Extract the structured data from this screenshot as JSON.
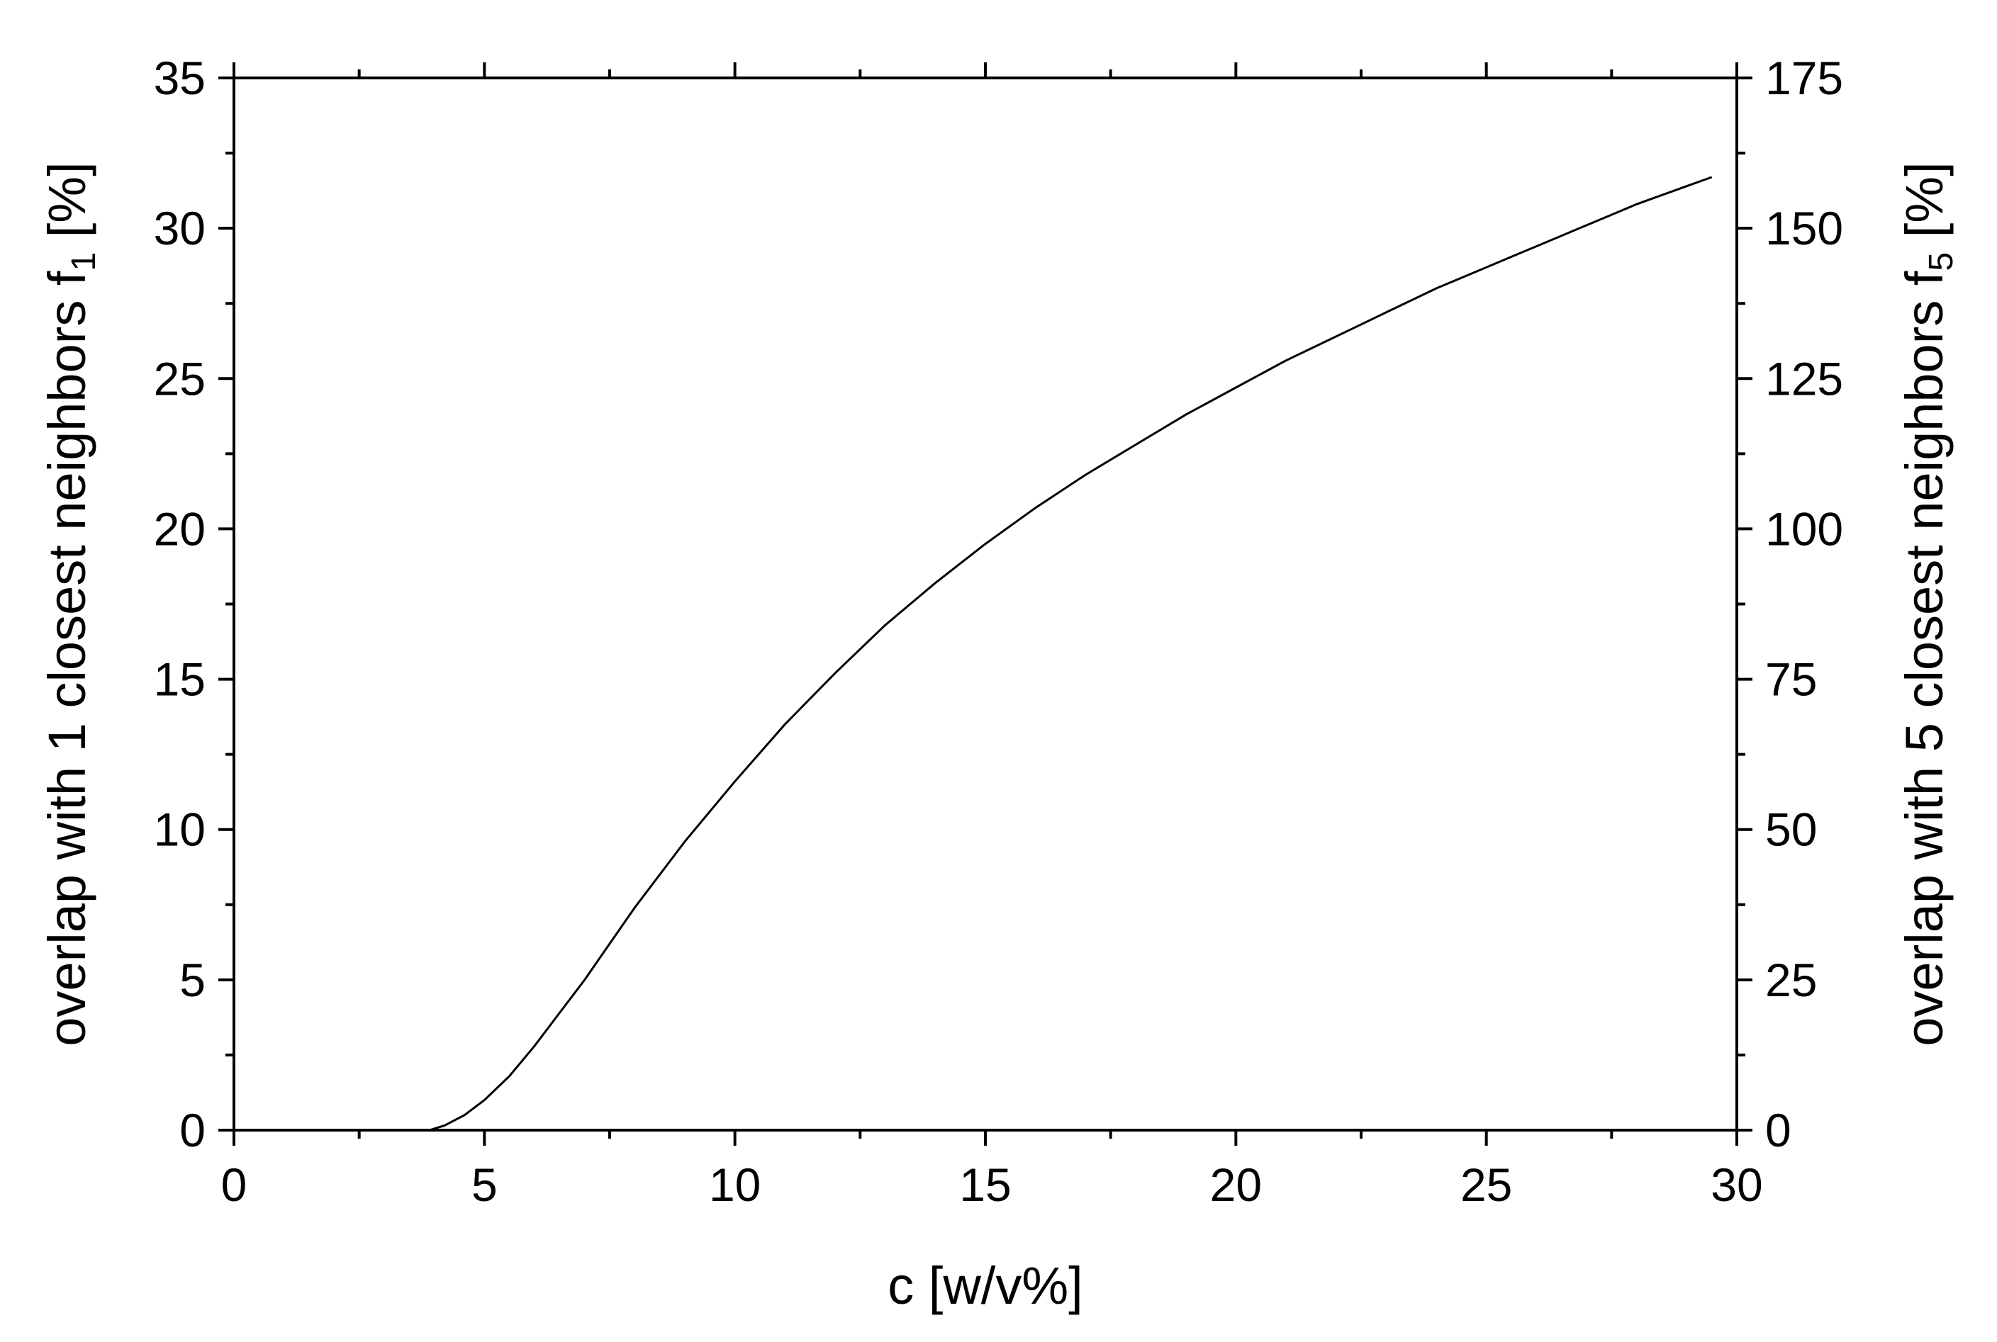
{
  "chart_data": {
    "type": "line",
    "xlabel": "c [w/v%]",
    "ylabel": {
      "main": "overlap with 1 closest neighbors f",
      "subscript": "1",
      "unit": " [%]"
    },
    "y2label": {
      "main": "overlap with 5 closest neighbors f",
      "subscript": "5",
      "unit": " [%]"
    },
    "xlim": [
      0,
      30
    ],
    "ylim": [
      0,
      35
    ],
    "y2lim": [
      0,
      175
    ],
    "xticks": [
      "0",
      "5",
      "10",
      "15",
      "20",
      "25",
      "30"
    ],
    "yticks": [
      "0",
      "5",
      "10",
      "15",
      "20",
      "25",
      "30",
      "35"
    ],
    "y2ticks": [
      "0",
      "25",
      "50",
      "75",
      "100",
      "125",
      "150",
      "175"
    ],
    "grid": false,
    "series": [
      {
        "x": [
          0,
          3.9,
          4.2,
          4.6,
          5.0,
          5.5,
          6.0,
          6.5,
          7.0,
          7.5,
          8.0,
          8.5,
          9.0,
          9.5,
          10.0,
          11.0,
          12.0,
          13.0,
          14.0,
          15.0,
          16.0,
          17.0,
          18.0,
          19.0,
          20.0,
          21.0,
          22.0,
          23.0,
          24.0,
          25.0,
          26.0,
          27.0,
          28.0,
          29.0,
          29.5
        ],
        "y": [
          0,
          0,
          0.15,
          0.5,
          1.0,
          1.8,
          2.8,
          3.9,
          5.0,
          6.2,
          7.4,
          8.5,
          9.6,
          10.6,
          11.6,
          13.5,
          15.2,
          16.8,
          18.2,
          19.5,
          20.7,
          21.8,
          22.8,
          23.8,
          24.7,
          25.6,
          26.4,
          27.2,
          28.0,
          28.7,
          29.4,
          30.1,
          30.8,
          31.4,
          31.7
        ]
      }
    ]
  }
}
